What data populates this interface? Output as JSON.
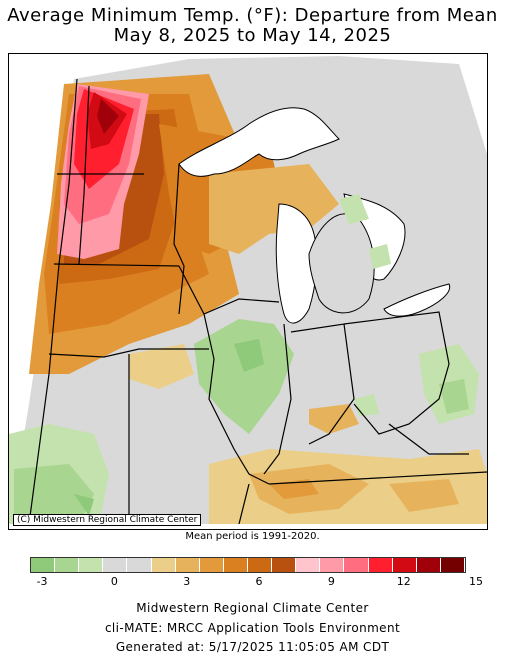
{
  "title": {
    "line1": "Average Minimum Temp. (°F): Departure from Mean",
    "line2": "May 8, 2025 to May 14, 2025"
  },
  "map": {
    "credit": "(C) Midwestern Regional Climate Center",
    "mean_period": "Mean period is 1991-2020."
  },
  "legend": {
    "colors": [
      "#8fc97a",
      "#a8d58f",
      "#c3e2ad",
      "#d9d9d9",
      "#d9d9d9",
      "#ebcf88",
      "#e6b35c",
      "#e29a3a",
      "#db8020",
      "#cc6a14",
      "#b8510f",
      "#ffc4cc",
      "#ff9aa8",
      "#ff6e80",
      "#ff1f2e",
      "#d10a14",
      "#a0000a",
      "#740000"
    ],
    "tick_labels": [
      {
        "value": "-3",
        "pos": 1
      },
      {
        "value": "0",
        "pos": 4
      },
      {
        "value": "3",
        "pos": 7
      },
      {
        "value": "6",
        "pos": 10
      },
      {
        "value": "9",
        "pos": 13
      },
      {
        "value": "12",
        "pos": 16
      },
      {
        "value": "15",
        "pos": 19
      }
    ]
  },
  "footer": {
    "line1": "Midwestern Regional Climate Center",
    "line2": "cli-MATE: MRCC Application Tools Environment",
    "line3": "Generated at: 5/17/2025 11:05:05 AM CDT"
  }
}
